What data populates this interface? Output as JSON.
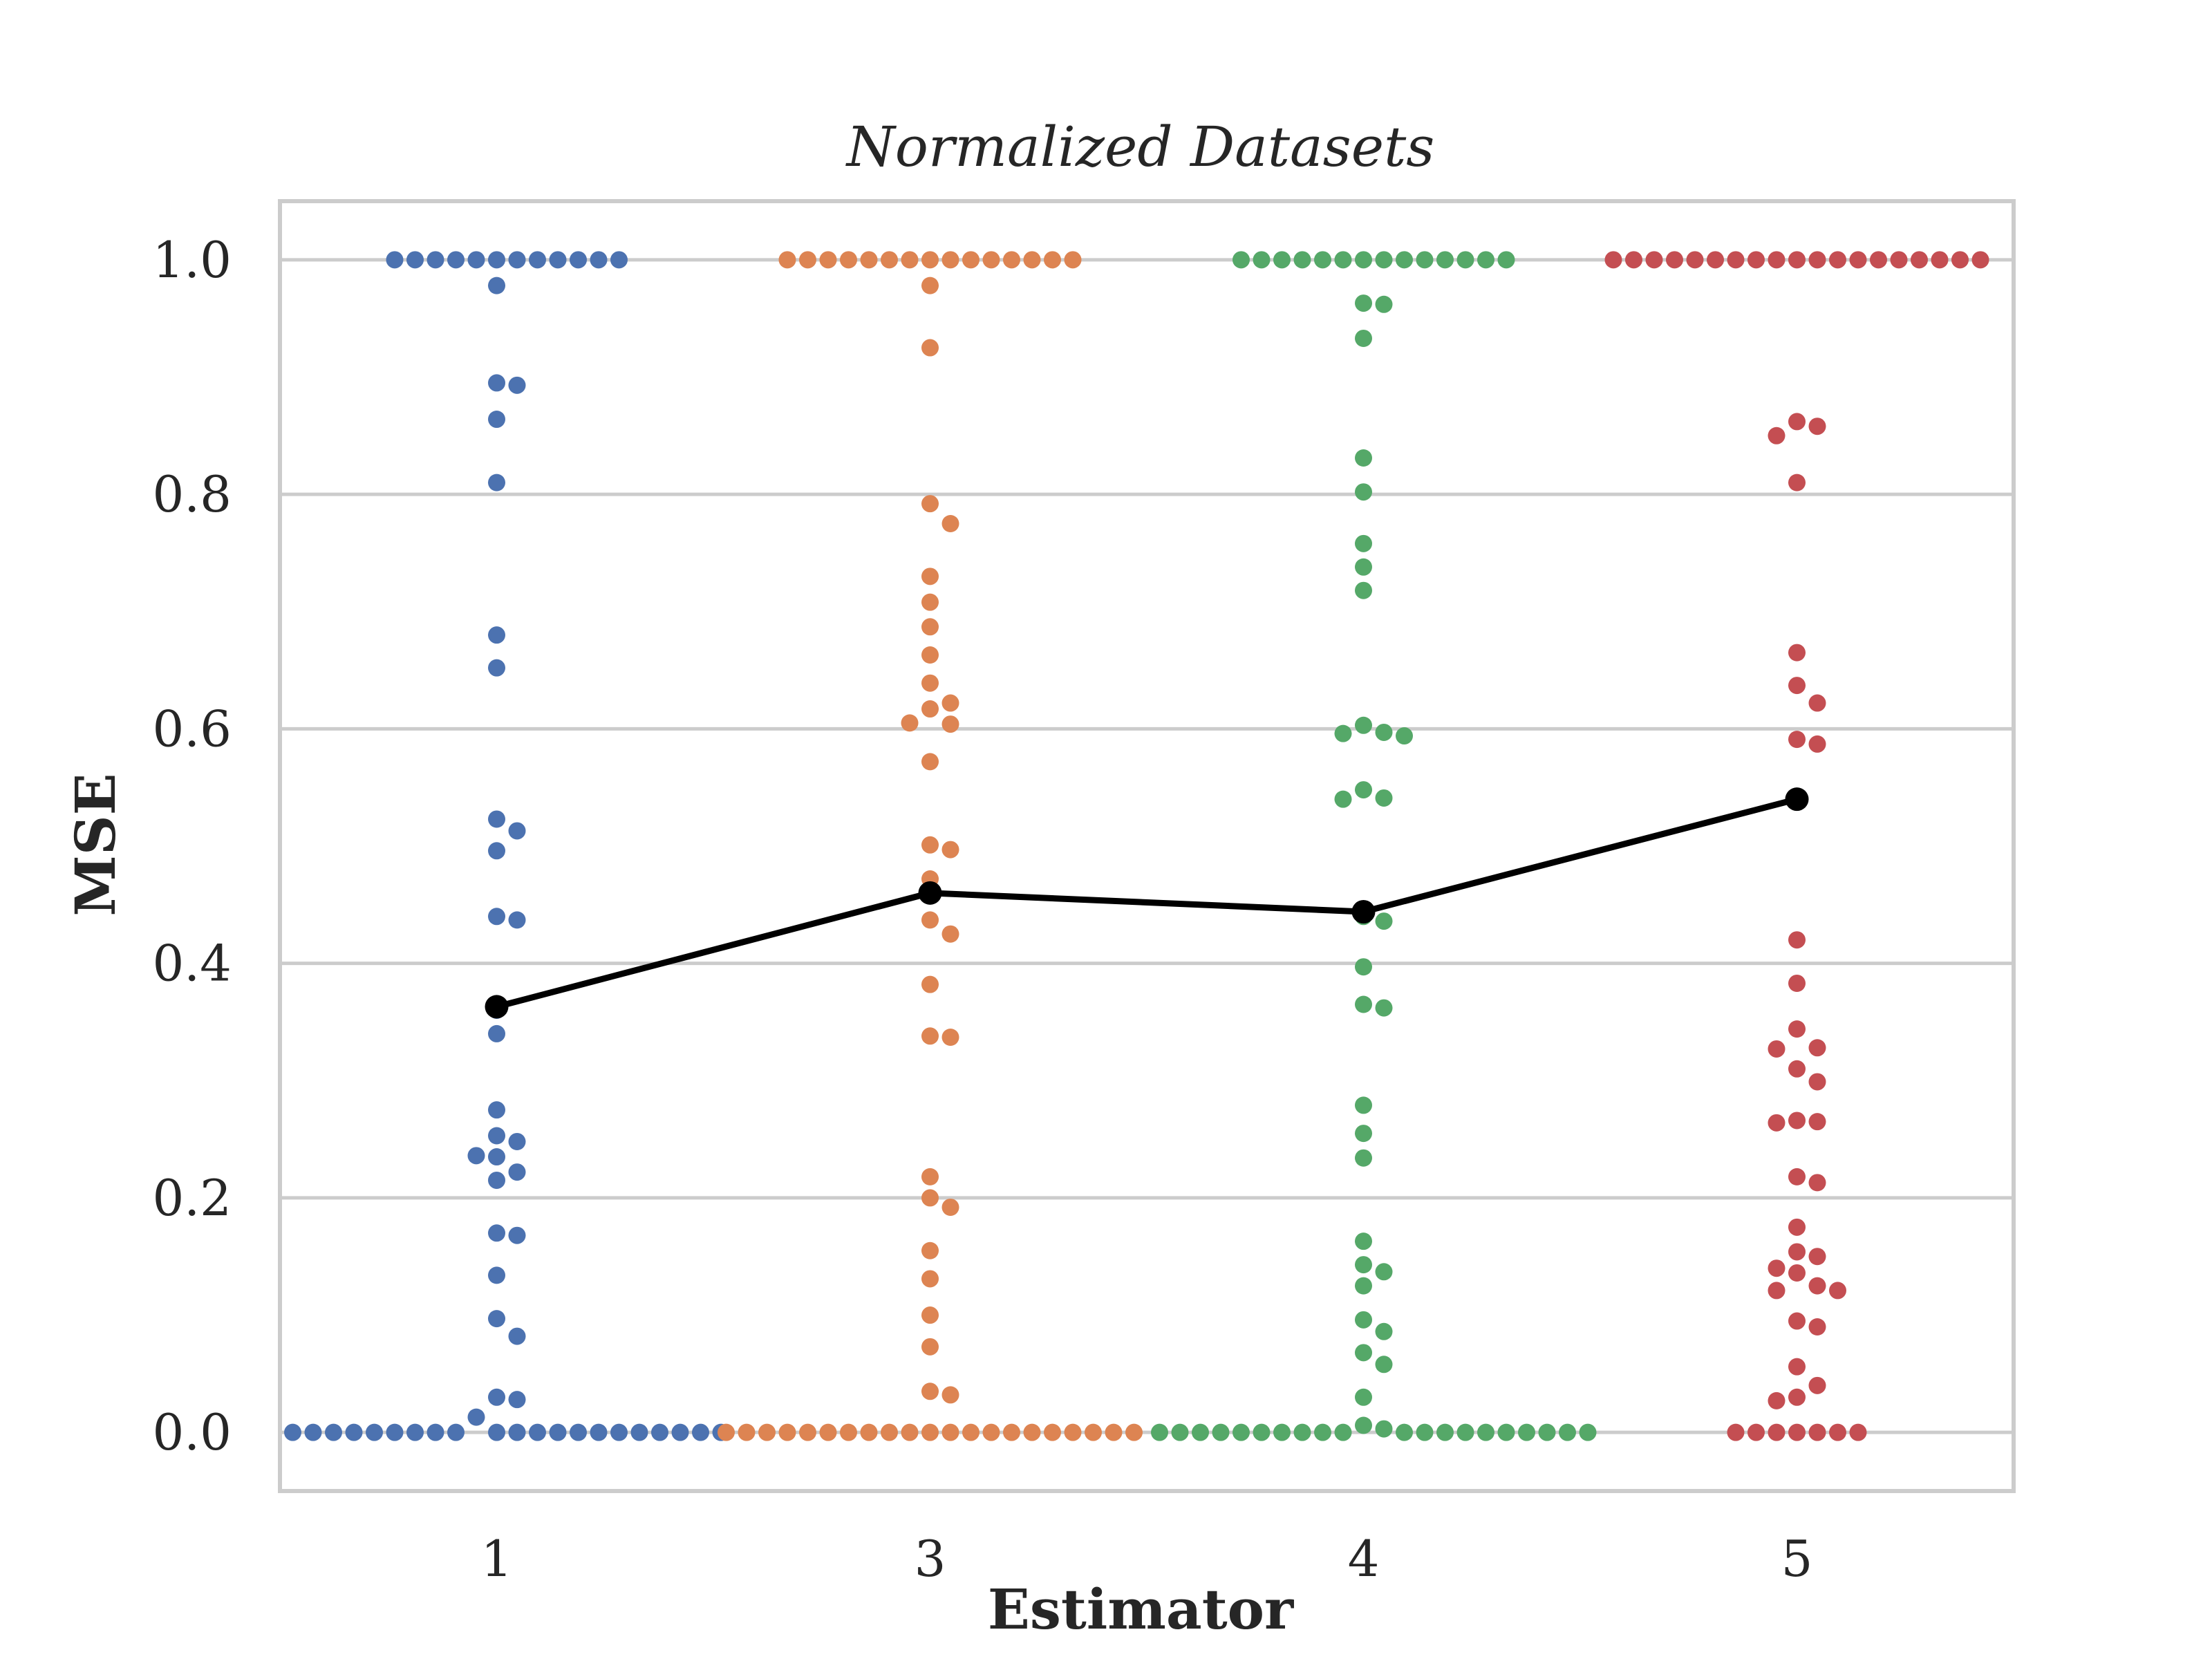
{
  "chart_data": {
    "type": "scatter",
    "subtype": "swarm-with-mean-line",
    "title": "Normalized Datasets",
    "xlabel": "Estimator",
    "ylabel": "MSE",
    "categories": [
      "1",
      "3",
      "4",
      "5"
    ],
    "ylim": [
      -0.05,
      1.05
    ],
    "yticks": [
      0.0,
      0.2,
      0.4,
      0.6,
      0.8,
      1.0
    ],
    "ytick_labels": [
      "0.0",
      "0.2",
      "0.4",
      "0.6",
      "0.8",
      "1.0"
    ],
    "grid": true,
    "mean_line": {
      "color": "#000000",
      "values": [
        0.363,
        0.46,
        0.444,
        0.54
      ]
    },
    "series": [
      {
        "category": "1",
        "color": "#4c72b0",
        "values": [
          1,
          1,
          1,
          1,
          1,
          1,
          1,
          1,
          1,
          1,
          1,
          1,
          0.978,
          0.895,
          0.893,
          0.864,
          0.81,
          0.68,
          0.652,
          0.523,
          0.513,
          0.496,
          0.44,
          0.437,
          0.36,
          0.34,
          0.275,
          0.253,
          0.248,
          0.236,
          0.235,
          0.222,
          0.215,
          0.17,
          0.168,
          0.134,
          0.097,
          0.082,
          0.03,
          0.028,
          0.013,
          0,
          0,
          0,
          0,
          0,
          0,
          0,
          0,
          0,
          0,
          0,
          0,
          0,
          0,
          0,
          0,
          0,
          0,
          0,
          0,
          0
        ]
      },
      {
        "category": "3",
        "color": "#dd8452",
        "values": [
          1,
          1,
          1,
          1,
          1,
          1,
          1,
          1,
          1,
          1,
          1,
          1,
          1,
          1,
          1,
          0.978,
          0.925,
          0.792,
          0.775,
          0.73,
          0.708,
          0.687,
          0.663,
          0.639,
          0.622,
          0.617,
          0.605,
          0.604,
          0.572,
          0.501,
          0.497,
          0.472,
          0.437,
          0.425,
          0.382,
          0.338,
          0.337,
          0.218,
          0.2,
          0.192,
          0.155,
          0.131,
          0.1,
          0.073,
          0.035,
          0.032,
          0,
          0,
          0,
          0,
          0,
          0,
          0,
          0,
          0,
          0,
          0,
          0,
          0,
          0,
          0,
          0,
          0,
          0,
          0,
          0,
          0
        ]
      },
      {
        "category": "4",
        "color": "#55a868",
        "values": [
          1,
          1,
          1,
          1,
          1,
          1,
          1,
          1,
          1,
          1,
          1,
          1,
          1,
          1,
          0.963,
          0.962,
          0.933,
          0.831,
          0.802,
          0.758,
          0.738,
          0.718,
          0.603,
          0.597,
          0.596,
          0.594,
          0.548,
          0.541,
          0.54,
          0.44,
          0.436,
          0.397,
          0.365,
          0.362,
          0.279,
          0.255,
          0.234,
          0.163,
          0.143,
          0.137,
          0.125,
          0.096,
          0.086,
          0.068,
          0.058,
          0.03,
          0.006,
          0.003,
          0,
          0,
          0,
          0,
          0,
          0,
          0,
          0,
          0,
          0,
          0,
          0,
          0,
          0,
          0,
          0,
          0,
          0,
          0,
          0
        ]
      },
      {
        "category": "5",
        "color": "#c44e52",
        "values": [
          1,
          1,
          1,
          1,
          1,
          1,
          1,
          1,
          1,
          1,
          1,
          1,
          1,
          1,
          1,
          1,
          1,
          1,
          1,
          0.862,
          0.858,
          0.85,
          0.81,
          0.665,
          0.637,
          0.622,
          0.591,
          0.587,
          0.42,
          0.383,
          0.344,
          0.328,
          0.327,
          0.31,
          0.299,
          0.266,
          0.265,
          0.264,
          0.218,
          0.213,
          0.175,
          0.154,
          0.15,
          0.14,
          0.136,
          0.125,
          0.121,
          0.121,
          0.095,
          0.09,
          0.056,
          0.04,
          0.03,
          0.027,
          0,
          0,
          0,
          0,
          0,
          0,
          0
        ]
      }
    ]
  }
}
